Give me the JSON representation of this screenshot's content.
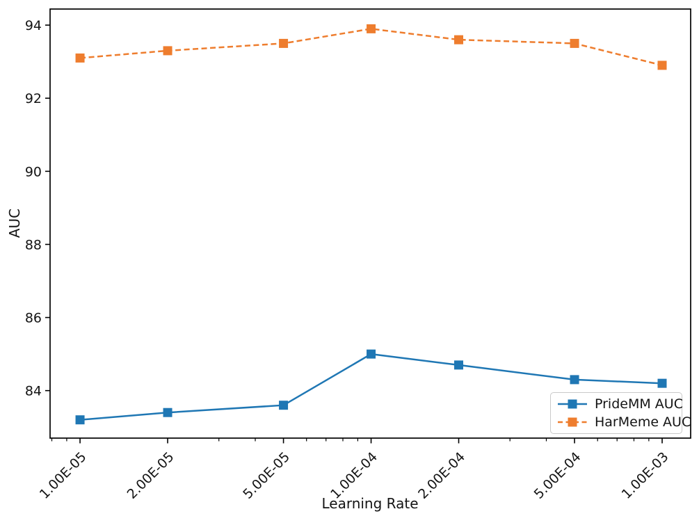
{
  "chart_data": {
    "type": "line",
    "title": "",
    "xlabel": "Learning Rate",
    "ylabel": "AUC",
    "x_scale": "log",
    "grid": false,
    "legend_position": "lower right",
    "categories": [
      "1.00E-05",
      "2.00E-05",
      "5.00E-05",
      "1.00E-04",
      "2.00E-04",
      "5.00E-04",
      "1.00E-03"
    ],
    "x_values": [
      1e-05,
      2e-05,
      5e-05,
      0.0001,
      0.0002,
      0.0005,
      0.001
    ],
    "x_minor_ticks": [
      8e-06,
      9e-06,
      3e-05,
      4e-05,
      6e-05,
      7e-05,
      8e-05,
      9e-05,
      0.0003,
      0.0004,
      0.0006,
      0.0007,
      0.0008,
      0.0009
    ],
    "xlim": [
      7.89e-06,
      0.001253
    ],
    "y_ticks": [
      84,
      86,
      88,
      90,
      92,
      94
    ],
    "ylim": [
      82.7,
      94.44
    ],
    "axis_color": "#000000",
    "series": [
      {
        "name": "PrideMM AUC",
        "color": "#1f77b4",
        "line_style": "solid",
        "marker": "square",
        "values": [
          83.2,
          83.4,
          83.6,
          85.0,
          84.7,
          84.3,
          84.2
        ]
      },
      {
        "name": "HarMeme AUC",
        "color": "#ee7d2e",
        "line_style": "dashed",
        "marker": "square",
        "values": [
          93.1,
          93.3,
          93.5,
          93.9,
          93.6,
          93.5,
          92.9
        ]
      }
    ]
  }
}
